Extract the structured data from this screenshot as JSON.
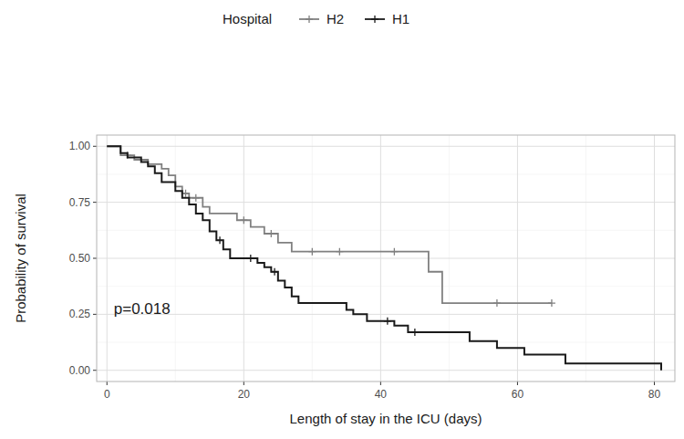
{
  "chart_data": {
    "type": "step",
    "x_label": "Length of stay in the ICU (days)",
    "y_label": "Probability of survival",
    "legend_title": "Hospital",
    "legend": "top",
    "grid": true,
    "annotation": {
      "text": "p=0.018",
      "x": 1,
      "y": 0.25
    },
    "xlim": [
      -1.5,
      83
    ],
    "xticks": [
      0,
      20,
      40,
      60,
      80
    ],
    "ylim": [
      -0.05,
      1.05
    ],
    "yticks": [
      {
        "value": 0,
        "label": "0.00"
      },
      {
        "value": 0.25,
        "label": "0.25"
      },
      {
        "value": 0.5,
        "label": "0.50"
      },
      {
        "value": 0.75,
        "label": "0.75"
      },
      {
        "value": 1,
        "label": "1.00"
      }
    ],
    "series": [
      {
        "name": "H2",
        "color": "#808080",
        "marker": "plus",
        "x": [
          0,
          2,
          4,
          6,
          8,
          9,
          10,
          11,
          12,
          14,
          15,
          19,
          21,
          23,
          25,
          27,
          47,
          49,
          65
        ],
        "values": [
          1,
          0.96,
          0.94,
          0.92,
          0.9,
          0.87,
          0.82,
          0.79,
          0.77,
          0.73,
          0.7,
          0.67,
          0.64,
          0.61,
          0.57,
          0.53,
          0.44,
          0.3,
          0.3
        ],
        "censor_x": [
          3,
          11.5,
          13,
          20,
          24,
          30,
          34,
          42,
          57,
          65
        ],
        "censor_values": [
          0.96,
          0.79,
          0.77,
          0.67,
          0.61,
          0.53,
          0.53,
          0.53,
          0.3,
          0.3
        ]
      },
      {
        "name": "H1",
        "color": "#1a1a1a",
        "marker": "plus",
        "x": [
          0,
          2,
          3,
          5,
          6,
          7,
          8,
          10,
          11,
          12,
          13,
          14,
          15,
          16,
          17,
          18,
          22,
          23,
          24,
          25,
          26,
          27,
          28,
          35,
          36,
          38,
          42,
          44,
          53,
          57,
          61,
          67,
          81
        ],
        "values": [
          1,
          0.97,
          0.95,
          0.93,
          0.91,
          0.88,
          0.84,
          0.8,
          0.77,
          0.74,
          0.7,
          0.67,
          0.62,
          0.58,
          0.54,
          0.5,
          0.48,
          0.46,
          0.44,
          0.4,
          0.37,
          0.33,
          0.3,
          0.27,
          0.25,
          0.22,
          0.2,
          0.17,
          0.13,
          0.1,
          0.07,
          0.03,
          0
        ],
        "censor_x": [
          16.5,
          21,
          24.5,
          41,
          45
        ],
        "censor_values": [
          0.58,
          0.5,
          0.44,
          0.22,
          0.17
        ]
      }
    ]
  }
}
